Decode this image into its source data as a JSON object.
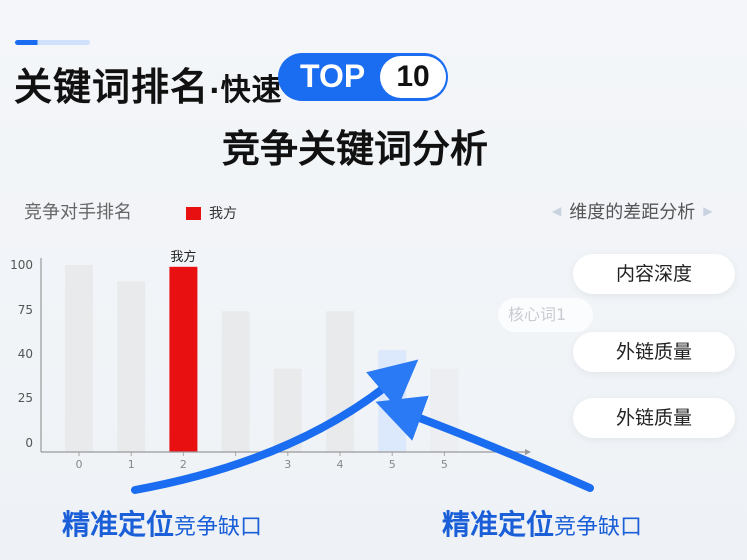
{
  "header": {
    "title_main": "关键词排名",
    "title_dot": "·",
    "title_fast": "快速",
    "top_label": "TOP",
    "top_number": "10",
    "subtitle": "竞争关键词分析"
  },
  "left_panel": {
    "heading": "竞争对手排名",
    "legend_label": "我方"
  },
  "right_panel": {
    "heading": "维度的差距分析",
    "items": [
      "内容深度",
      "外链质量",
      "外链质量"
    ],
    "ghost_item": "核心词1"
  },
  "captions": [
    {
      "big": "精准定位",
      "small": "竞争缺口"
    },
    {
      "big": "精准定位",
      "small": "竞争缺口"
    }
  ],
  "colors": {
    "accent": "#1a6cf0",
    "ours": "#e81010",
    "competitor": "#e9eaeb",
    "highlight": "#dce8fb"
  },
  "chart_data": {
    "type": "bar",
    "categories": [
      "0",
      "1",
      "2",
      "",
      "3",
      "4",
      "5",
      "5"
    ],
    "values": [
      100,
      91,
      99,
      74,
      35,
      74,
      43,
      35
    ],
    "highlight_index": 2,
    "gap_index": 6,
    "bar_label": "我方",
    "y_ticks": [
      0,
      25,
      40,
      75,
      100
    ],
    "y_tick_labels": [
      "0",
      "25",
      "40",
      "75",
      "100"
    ],
    "ylim": [
      0,
      100
    ],
    "grid": false,
    "legend": "top-left"
  }
}
